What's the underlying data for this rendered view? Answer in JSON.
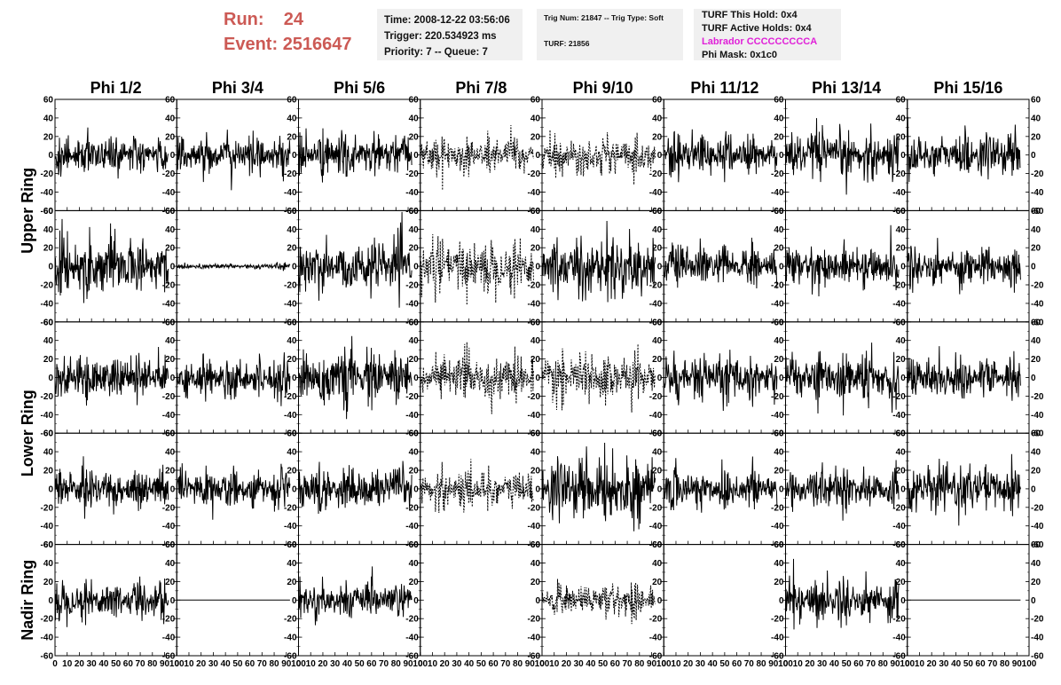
{
  "header": {
    "run_label": "Run:",
    "run_value": "24",
    "event_label": "Event:",
    "event_value": "2516647"
  },
  "time_box": {
    "time": "Time: 2008-12-22 03:56:06",
    "trigger": "Trigger: 220.534923 ms",
    "priority": "Priority: 7 -- Queue: 7"
  },
  "trig_box": {
    "trig": "Trig Num: 21847 -- Trig Type: Soft",
    "turf": "TURF: 21856"
  },
  "turf_box": {
    "this_hold": "TURF This Hold: 0x4",
    "active_holds": "TURF Active Holds: 0x4",
    "labrador": "Labrador CCCCCCCCCA",
    "phi_mask": "Phi Mask: 0x1c0"
  },
  "colors": {
    "header_red": "#cc5a55",
    "labrador_magenta": "#e020d8",
    "trace": "#000000",
    "info_bg": "#f0f0f0"
  },
  "chart_data": {
    "type": "line",
    "columns": [
      "Phi 1/2",
      "Phi 3/4",
      "Phi 5/6",
      "Phi 7/8",
      "Phi 9/10",
      "Phi 11/12",
      "Phi 13/14",
      "Phi 15/16"
    ],
    "rows": [
      "Upper Ring",
      "Upper Ring",
      "Lower Ring",
      "Lower Ring",
      "Nadir Ring"
    ],
    "row_labels": [
      {
        "label": "Upper Ring",
        "span": [
          0,
          1
        ]
      },
      {
        "label": "Lower Ring",
        "span": [
          2,
          3
        ]
      },
      {
        "label": "Nadir Ring",
        "span": [
          4,
          4
        ]
      }
    ],
    "xlim": [
      0,
      100
    ],
    "ylim": [
      -60,
      60
    ],
    "x_ticks": [
      0,
      10,
      20,
      30,
      40,
      50,
      60,
      70,
      80,
      90,
      100
    ],
    "x_tick_labels": [
      "0",
      "10",
      "20",
      "30",
      "40",
      "50",
      "60",
      "70",
      "80",
      "90",
      "100"
    ],
    "y_ticks": [
      60,
      40,
      20,
      0,
      -20,
      -40,
      -60
    ],
    "y_tick_labels": [
      "60",
      "40",
      "20",
      "0",
      "-20",
      "-40",
      "-60"
    ],
    "x_data_range": [
      0,
      93
    ],
    "n_samples": 256,
    "panel_amplitude": [
      [
        12,
        12,
        14,
        12,
        12,
        13,
        15,
        14
      ],
      [
        18,
        2,
        17,
        17,
        20,
        13,
        13,
        13
      ],
      [
        14,
        13,
        17,
        14,
        15,
        15,
        16,
        13
      ],
      [
        13,
        11,
        14,
        13,
        20,
        14,
        13,
        15
      ],
      [
        13,
        0,
        11,
        0,
        11,
        0,
        14,
        0
      ]
    ],
    "panel_style": [
      [
        "solid",
        "solid",
        "solid",
        "dashed",
        "dashed",
        "solid",
        "solid",
        "solid"
      ],
      [
        "solid",
        "solid",
        "solid",
        "dashed",
        "solid",
        "solid",
        "solid",
        "solid"
      ],
      [
        "solid",
        "solid",
        "solid",
        "dashed",
        "dashed",
        "solid",
        "solid",
        "solid"
      ],
      [
        "solid",
        "solid",
        "solid",
        "dashed",
        "solid",
        "solid",
        "solid",
        "solid"
      ],
      [
        "solid",
        "flat",
        "solid",
        "empty",
        "dashed",
        "empty",
        "solid",
        "flat"
      ]
    ]
  }
}
